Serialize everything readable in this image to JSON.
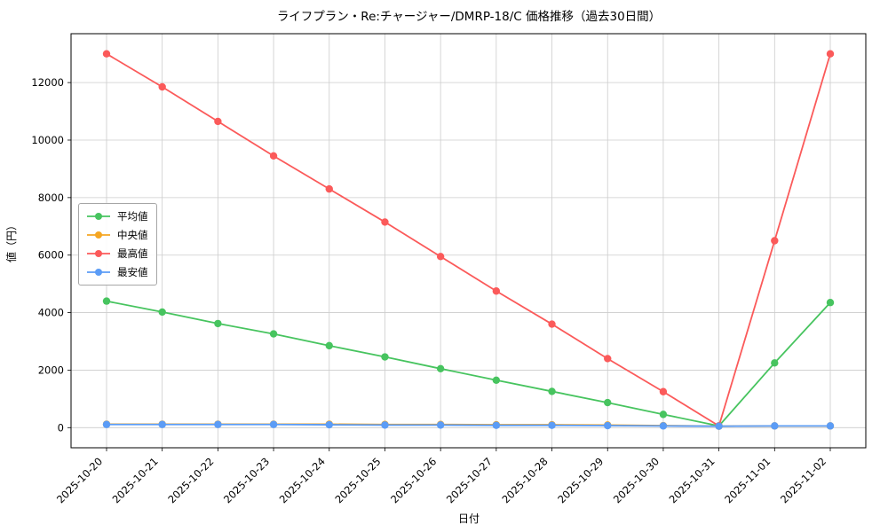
{
  "chart_data": {
    "type": "line",
    "title": "ライフプラン・Re:チャージャー/DMRP-18/C 価格推移（過去30日間）",
    "xlabel": "日付",
    "ylabel": "値（円）",
    "grid": true,
    "legend_position": "center-left",
    "ylim": [
      -700,
      13700
    ],
    "y_ticks": [
      0,
      2000,
      4000,
      6000,
      8000,
      10000,
      12000
    ],
    "categories": [
      "2025-10-20",
      "2025-10-21",
      "2025-10-22",
      "2025-10-23",
      "2025-10-24",
      "2025-10-25",
      "2025-10-26",
      "2025-10-27",
      "2025-10-28",
      "2025-10-29",
      "2025-10-30",
      "2025-10-31",
      "2025-11-01",
      "2025-11-02"
    ],
    "series": [
      {
        "name": "平均値",
        "color": "#47c45f",
        "values": [
          4400,
          4020,
          3620,
          3260,
          2850,
          2460,
          2050,
          1650,
          1260,
          870,
          460,
          60,
          2250,
          4350
        ]
      },
      {
        "name": "中央値",
        "color": "#f5a623",
        "values": [
          120,
          120,
          120,
          120,
          120,
          110,
          110,
          100,
          100,
          90,
          70,
          50,
          60,
          60
        ]
      },
      {
        "name": "最高値",
        "color": "#fb5a5a",
        "values": [
          13000,
          11850,
          10650,
          9450,
          8300,
          7150,
          5950,
          4750,
          3600,
          2400,
          1250,
          60,
          6500,
          13000
        ]
      },
      {
        "name": "最安値",
        "color": "#5b9cf6",
        "values": [
          110,
          110,
          110,
          110,
          100,
          90,
          90,
          80,
          80,
          70,
          60,
          50,
          60,
          60
        ]
      }
    ]
  }
}
